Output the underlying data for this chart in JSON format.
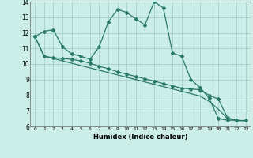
{
  "xlabel": "Humidex (Indice chaleur)",
  "xlim": [
    -0.5,
    23.5
  ],
  "ylim": [
    6,
    14
  ],
  "yticks": [
    6,
    7,
    8,
    9,
    10,
    11,
    12,
    13,
    14
  ],
  "xticks": [
    0,
    1,
    2,
    3,
    4,
    5,
    6,
    7,
    8,
    9,
    10,
    11,
    12,
    13,
    14,
    15,
    16,
    17,
    18,
    19,
    20,
    21,
    22,
    23
  ],
  "bg_color": "#cceee8",
  "grid_color": "#aad4ce",
  "line_color": "#2a7a6a",
  "line1_x": [
    0,
    1,
    2,
    3,
    4,
    5,
    6,
    7,
    8,
    9,
    10,
    11,
    12,
    13,
    14,
    15,
    16,
    17,
    18,
    19,
    20,
    21,
    22
  ],
  "line1_y": [
    11.75,
    12.1,
    12.2,
    11.1,
    10.65,
    10.5,
    10.3,
    11.1,
    12.7,
    13.5,
    13.3,
    12.9,
    12.5,
    14.0,
    13.6,
    10.7,
    10.5,
    9.0,
    8.5,
    7.8,
    6.5,
    6.4,
    6.4
  ],
  "line2_x": [
    0,
    1,
    2,
    3,
    4,
    5,
    6,
    7,
    8,
    9,
    10,
    11,
    12,
    13,
    14,
    15,
    16,
    17,
    18,
    19,
    20,
    21,
    22,
    23
  ],
  "line2_y": [
    11.75,
    10.5,
    10.4,
    10.35,
    10.3,
    10.2,
    10.05,
    9.85,
    9.7,
    9.5,
    9.35,
    9.2,
    9.05,
    8.9,
    8.75,
    8.6,
    8.45,
    8.4,
    8.35,
    8.0,
    7.75,
    6.55,
    6.38,
    6.38
  ],
  "line3_x": [
    0,
    1,
    2,
    3,
    4,
    5,
    6,
    7,
    8,
    9,
    10,
    11,
    12,
    13,
    14,
    15,
    16,
    17,
    18,
    19,
    20,
    21,
    22,
    23
  ],
  "line3_y": [
    11.75,
    10.5,
    10.35,
    10.2,
    10.05,
    9.9,
    9.75,
    9.6,
    9.45,
    9.3,
    9.15,
    9.0,
    8.85,
    8.7,
    8.55,
    8.4,
    8.25,
    8.1,
    7.95,
    7.6,
    7.1,
    6.5,
    6.38,
    6.35
  ]
}
